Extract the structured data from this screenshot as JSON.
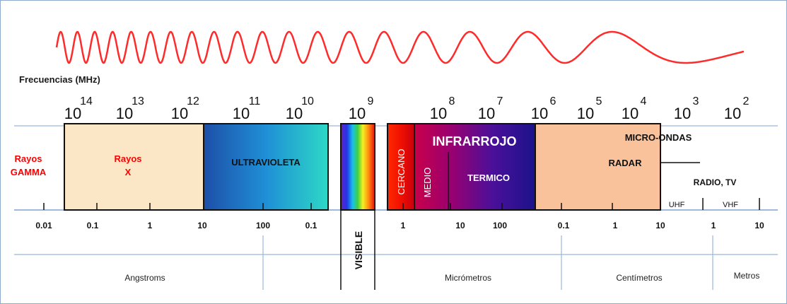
{
  "freq_title": "Frecuencias (MHz)",
  "freq_base": "10",
  "freq_exponents": [
    "14",
    "13",
    "12",
    "11",
    "10",
    "9",
    "8",
    "7",
    "6",
    "5",
    "4",
    "3",
    "2"
  ],
  "bands": {
    "gamma_line1": "Rayos",
    "gamma_line2": "GAMMA",
    "xray_line1": "Rayos",
    "xray_line2": "X",
    "ultraviolet": "ULTRAVIOLETA",
    "visible": "VISIBLE",
    "near_ir": "CERCANO",
    "mid_ir": "MEDIO",
    "infrared": "INFRARROJO",
    "thermal": "TERMICO",
    "microwaves": "MICRO-ONDAS",
    "radar": "RADAR",
    "radio_tv": "RADIO, TV",
    "uhf": "UHF",
    "vhf": "VHF"
  },
  "scale_labels": [
    "0.01",
    "0.1",
    "1",
    "10",
    "100",
    "0.1",
    "1",
    "10",
    "100",
    "0.1",
    "1",
    "10",
    "1",
    "10"
  ],
  "units": {
    "angstroms": "Angstroms",
    "micrometers": "Micrómetros",
    "centimeters": "Centímetros",
    "meters": "Metros"
  },
  "colors": {
    "wave": "#ff2a2a",
    "red_text": "#ff0000",
    "xray_fill": "#fbe7c6",
    "radar_fill": "#f9c29a",
    "axis": "#7ea2d2"
  }
}
